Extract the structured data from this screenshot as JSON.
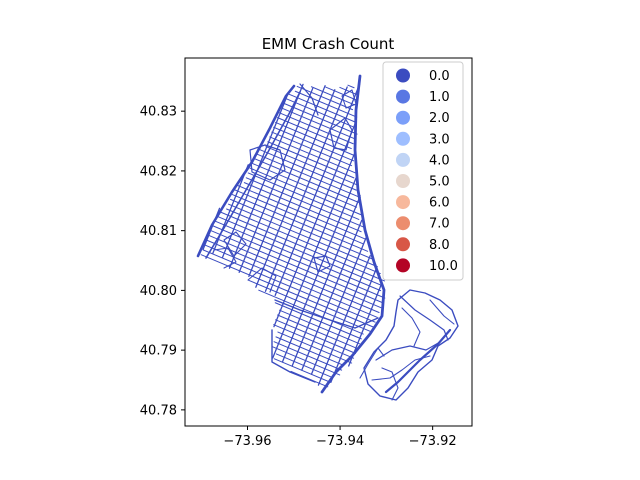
{
  "chart_data": {
    "type": "map",
    "title": "EMM Crash Count",
    "xlim": [
      -73.9735,
      -73.9115
    ],
    "ylim": [
      40.7773,
      40.8389
    ],
    "x_ticks": [
      -73.96,
      -73.94,
      -73.92
    ],
    "x_tick_labels": [
      "−73.96",
      "−73.94",
      "−73.92"
    ],
    "y_ticks": [
      40.78,
      40.79,
      40.8,
      40.81,
      40.82,
      40.83
    ],
    "y_tick_labels": [
      "40.78",
      "40.79",
      "40.80",
      "40.81",
      "40.82",
      "40.83"
    ],
    "colormap": "coolwarm",
    "street_color": "#3b4cc0",
    "legend_position": "upper right",
    "legend": [
      {
        "label": "0.0",
        "color": "#3b4cc0"
      },
      {
        "label": "1.0",
        "color": "#5977e3"
      },
      {
        "label": "2.0",
        "color": "#7b9ff9"
      },
      {
        "label": "3.0",
        "color": "#9ebeff"
      },
      {
        "label": "4.0",
        "color": "#c0d4f5"
      },
      {
        "label": "5.0",
        "color": "#e7d7ce"
      },
      {
        "label": "6.0",
        "color": "#f7b89c"
      },
      {
        "label": "7.0",
        "color": "#ec8d6e"
      },
      {
        "label": "8.0",
        "color": "#d85747"
      },
      {
        "label": "10.0",
        "color": "#b40426"
      }
    ]
  }
}
